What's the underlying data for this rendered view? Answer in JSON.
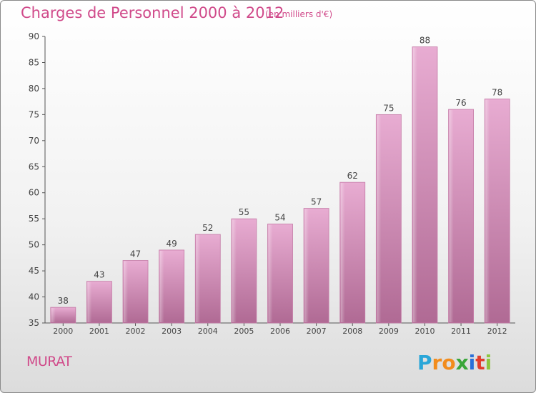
{
  "title": "Charges de Personnel 2000 à 2012",
  "subtitle": "(en milliers d'€)",
  "place": "MURAT",
  "brand": {
    "text": "Proxiti",
    "letter_colors": [
      "#2aa6d8",
      "#f28c1c",
      "#f28c1c",
      "#3aa63a",
      "#2a6fd8",
      "#e23c2c",
      "#8cc63f"
    ]
  },
  "colors": {
    "bar": "#d68ab4",
    "bar_light": "#e6aad0",
    "bar_dark": "#b06a94",
    "text": "#d04a8a"
  },
  "chart_data": {
    "type": "bar",
    "title": "Charges de Personnel 2000 à 2012",
    "subtitle": "(en milliers d'€)",
    "xlabel": "",
    "ylabel": "",
    "categories": [
      "2000",
      "2001",
      "2002",
      "2003",
      "2004",
      "2005",
      "2006",
      "2007",
      "2008",
      "2009",
      "2010",
      "2011",
      "2012"
    ],
    "values": [
      38,
      43,
      47,
      49,
      52,
      55,
      54,
      57,
      62,
      75,
      88,
      76,
      78
    ],
    "ylim": [
      35,
      90
    ],
    "yticks": [
      35,
      40,
      45,
      50,
      55,
      60,
      65,
      70,
      75,
      80,
      85,
      90
    ],
    "grid": false,
    "data_labels": true
  }
}
